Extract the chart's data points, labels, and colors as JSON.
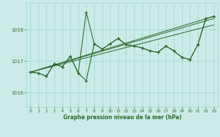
{
  "bg_color": "#cceae7",
  "grid_color": "#99d5d0",
  "line_color": "#2d6a2d",
  "xlabel": "Graphe pression niveau de la mer (hPa)",
  "ylim": [
    1015.55,
    1018.85
  ],
  "xlim": [
    -0.5,
    23.5
  ],
  "yticks": [
    1016,
    1017,
    1018
  ],
  "xticks": [
    0,
    1,
    2,
    3,
    4,
    5,
    6,
    7,
    8,
    9,
    10,
    11,
    12,
    13,
    14,
    15,
    16,
    17,
    18,
    19,
    20,
    21,
    22,
    23
  ],
  "series1": [
    1016.65,
    1016.62,
    1016.52,
    1016.92,
    1016.82,
    1017.15,
    1016.62,
    1018.55,
    1017.55,
    1017.38,
    1017.55,
    1017.72,
    1017.52,
    1017.48,
    1017.42,
    1017.32,
    1017.28,
    1017.48,
    1017.32,
    1017.12,
    1017.05,
    1017.52,
    1018.35,
    1018.42
  ],
  "series2": [
    1016.65,
    1016.62,
    1016.52,
    1016.92,
    1016.82,
    1017.15,
    1016.62,
    1016.38,
    1017.55,
    1017.38,
    1017.55,
    1017.72,
    1017.52,
    1017.48,
    1017.42,
    1017.32,
    1017.28,
    1017.48,
    1017.32,
    1017.12,
    1017.05,
    1017.52,
    1018.35,
    1018.42
  ],
  "trend1_x": [
    0,
    23
  ],
  "trend1_y": [
    1016.65,
    1018.42
  ],
  "trend2_x": [
    0,
    23
  ],
  "trend2_y": [
    1016.65,
    1018.35
  ],
  "trend3_x": [
    0,
    23
  ],
  "trend3_y": [
    1016.65,
    1018.15
  ]
}
